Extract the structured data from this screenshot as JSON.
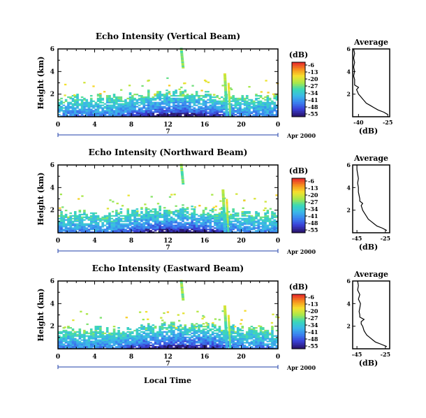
{
  "figure": {
    "xlabel": "Local Time",
    "ylabel": "Height (km)",
    "avg_title": "Average",
    "avg_xlabel": "(dB)",
    "colorbar_unit": "(dB)",
    "date_day": "7",
    "date_label": "Apr 2000",
    "colors": {
      "scale": [
        "#2a1670",
        "#3a3fd6",
        "#3b82f0",
        "#3bb8e8",
        "#39d8b8",
        "#a8e84a",
        "#f5e22e",
        "#f7941d",
        "#e8302a"
      ],
      "frame": "#000000",
      "day_marker": "#1f3fa8"
    }
  },
  "chart_data": [
    {
      "type": "heatmap",
      "title": "Echo Intensity (Vertical Beam)",
      "xlabel": "Local Time",
      "ylabel": "Height (km)",
      "x_ticks": [
        "0",
        "4",
        "8",
        "12",
        "16",
        "20",
        "0"
      ],
      "xlim": [
        0,
        24
      ],
      "y_ticks": [
        "2",
        "4",
        "6"
      ],
      "ylim": [
        0,
        6
      ],
      "colorbar": {
        "label": "(dB)",
        "ticks": [
          "-6",
          "-13",
          "-20",
          "-27",
          "-34",
          "-41",
          "-48",
          "-55"
        ],
        "range": [
          -58,
          -3
        ]
      },
      "average_profile": {
        "title": "Average",
        "xlabel": "(dB)",
        "x_ticks": [
          "-40",
          "-25"
        ],
        "xlim": [
          -43,
          -24
        ],
        "y_ticks": [
          "2",
          "4",
          "6"
        ],
        "ylim": [
          0,
          6
        ],
        "height_km": [
          0.2,
          0.4,
          0.6,
          0.8,
          1.0,
          1.2,
          1.4,
          1.6,
          1.8,
          2.0,
          2.2,
          2.4,
          2.6,
          2.8,
          3.0,
          3.3,
          3.6,
          4.0,
          4.4,
          4.8,
          5.2,
          5.6,
          6.0
        ],
        "intensity_db": [
          -25,
          -27,
          -30,
          -32,
          -34,
          -36,
          -37,
          -38,
          -39,
          -40,
          -40.5,
          -41,
          -40,
          -42,
          -42,
          -42,
          -42.5,
          -42,
          -42.5,
          -42,
          -42.5,
          -42,
          -42.5
        ]
      }
    },
    {
      "type": "heatmap",
      "title": "Echo Intensity (Northward Beam)",
      "xlabel": "Local Time",
      "ylabel": "Height (km)",
      "x_ticks": [
        "0",
        "4",
        "8",
        "12",
        "16",
        "20",
        "0"
      ],
      "xlim": [
        0,
        24
      ],
      "y_ticks": [
        "2",
        "4",
        "6"
      ],
      "ylim": [
        0,
        6
      ],
      "colorbar": {
        "label": "(dB)",
        "ticks": [
          "-6",
          "-13",
          "-20",
          "-27",
          "-34",
          "-41",
          "-48",
          "-55"
        ],
        "range": [
          -58,
          -3
        ]
      },
      "average_profile": {
        "title": "Average",
        "xlabel": "(dB)",
        "x_ticks": [
          "-45",
          "-25"
        ],
        "xlim": [
          -48,
          -22
        ],
        "y_ticks": [
          "2",
          "4",
          "6"
        ],
        "ylim": [
          0,
          6
        ],
        "height_km": [
          0.2,
          0.4,
          0.6,
          0.8,
          1.0,
          1.2,
          1.4,
          1.6,
          1.8,
          2.0,
          2.2,
          2.4,
          2.6,
          2.8,
          3.0,
          3.3,
          3.6,
          4.0,
          4.4,
          4.8,
          5.2,
          5.6,
          6.0
        ],
        "intensity_db": [
          -24,
          -27,
          -31,
          -33,
          -35,
          -37,
          -38,
          -39,
          -40,
          -41,
          -41.5,
          -42,
          -41,
          -43,
          -43,
          -43.5,
          -44,
          -44,
          -44.5,
          -44,
          -44.5,
          -45,
          -45
        ]
      }
    },
    {
      "type": "heatmap",
      "title": "Echo Intensity (Eastward Beam)",
      "xlabel": "Local Time",
      "ylabel": "Height (km)",
      "x_ticks": [
        "0",
        "4",
        "8",
        "12",
        "16",
        "20",
        "0"
      ],
      "xlim": [
        0,
        24
      ],
      "y_ticks": [
        "2",
        "4",
        "6"
      ],
      "ylim": [
        0,
        6
      ],
      "colorbar": {
        "label": "(dB)",
        "ticks": [
          "-6",
          "-13",
          "-20",
          "-27",
          "-34",
          "-41",
          "-48",
          "-55"
        ],
        "range": [
          -58,
          -3
        ]
      },
      "average_profile": {
        "title": "Average",
        "xlabel": "(dB)",
        "x_ticks": [
          "-45",
          "-25"
        ],
        "xlim": [
          -48,
          -22
        ],
        "y_ticks": [
          "2",
          "4",
          "6"
        ],
        "ylim": [
          0,
          6
        ],
        "height_km": [
          0.2,
          0.4,
          0.6,
          0.8,
          1.0,
          1.2,
          1.4,
          1.6,
          1.8,
          2.0,
          2.2,
          2.4,
          2.6,
          2.8,
          3.0,
          3.3,
          3.6,
          4.0,
          4.4,
          4.8,
          5.2,
          5.6,
          6.0
        ],
        "intensity_db": [
          -24,
          -28,
          -32,
          -34,
          -36,
          -38,
          -39,
          -40,
          -40.5,
          -41,
          -42,
          -42,
          -40,
          -43,
          -43,
          -43.5,
          -43,
          -42.5,
          -44,
          -43,
          -44.5,
          -44,
          -44.5
        ]
      }
    }
  ]
}
